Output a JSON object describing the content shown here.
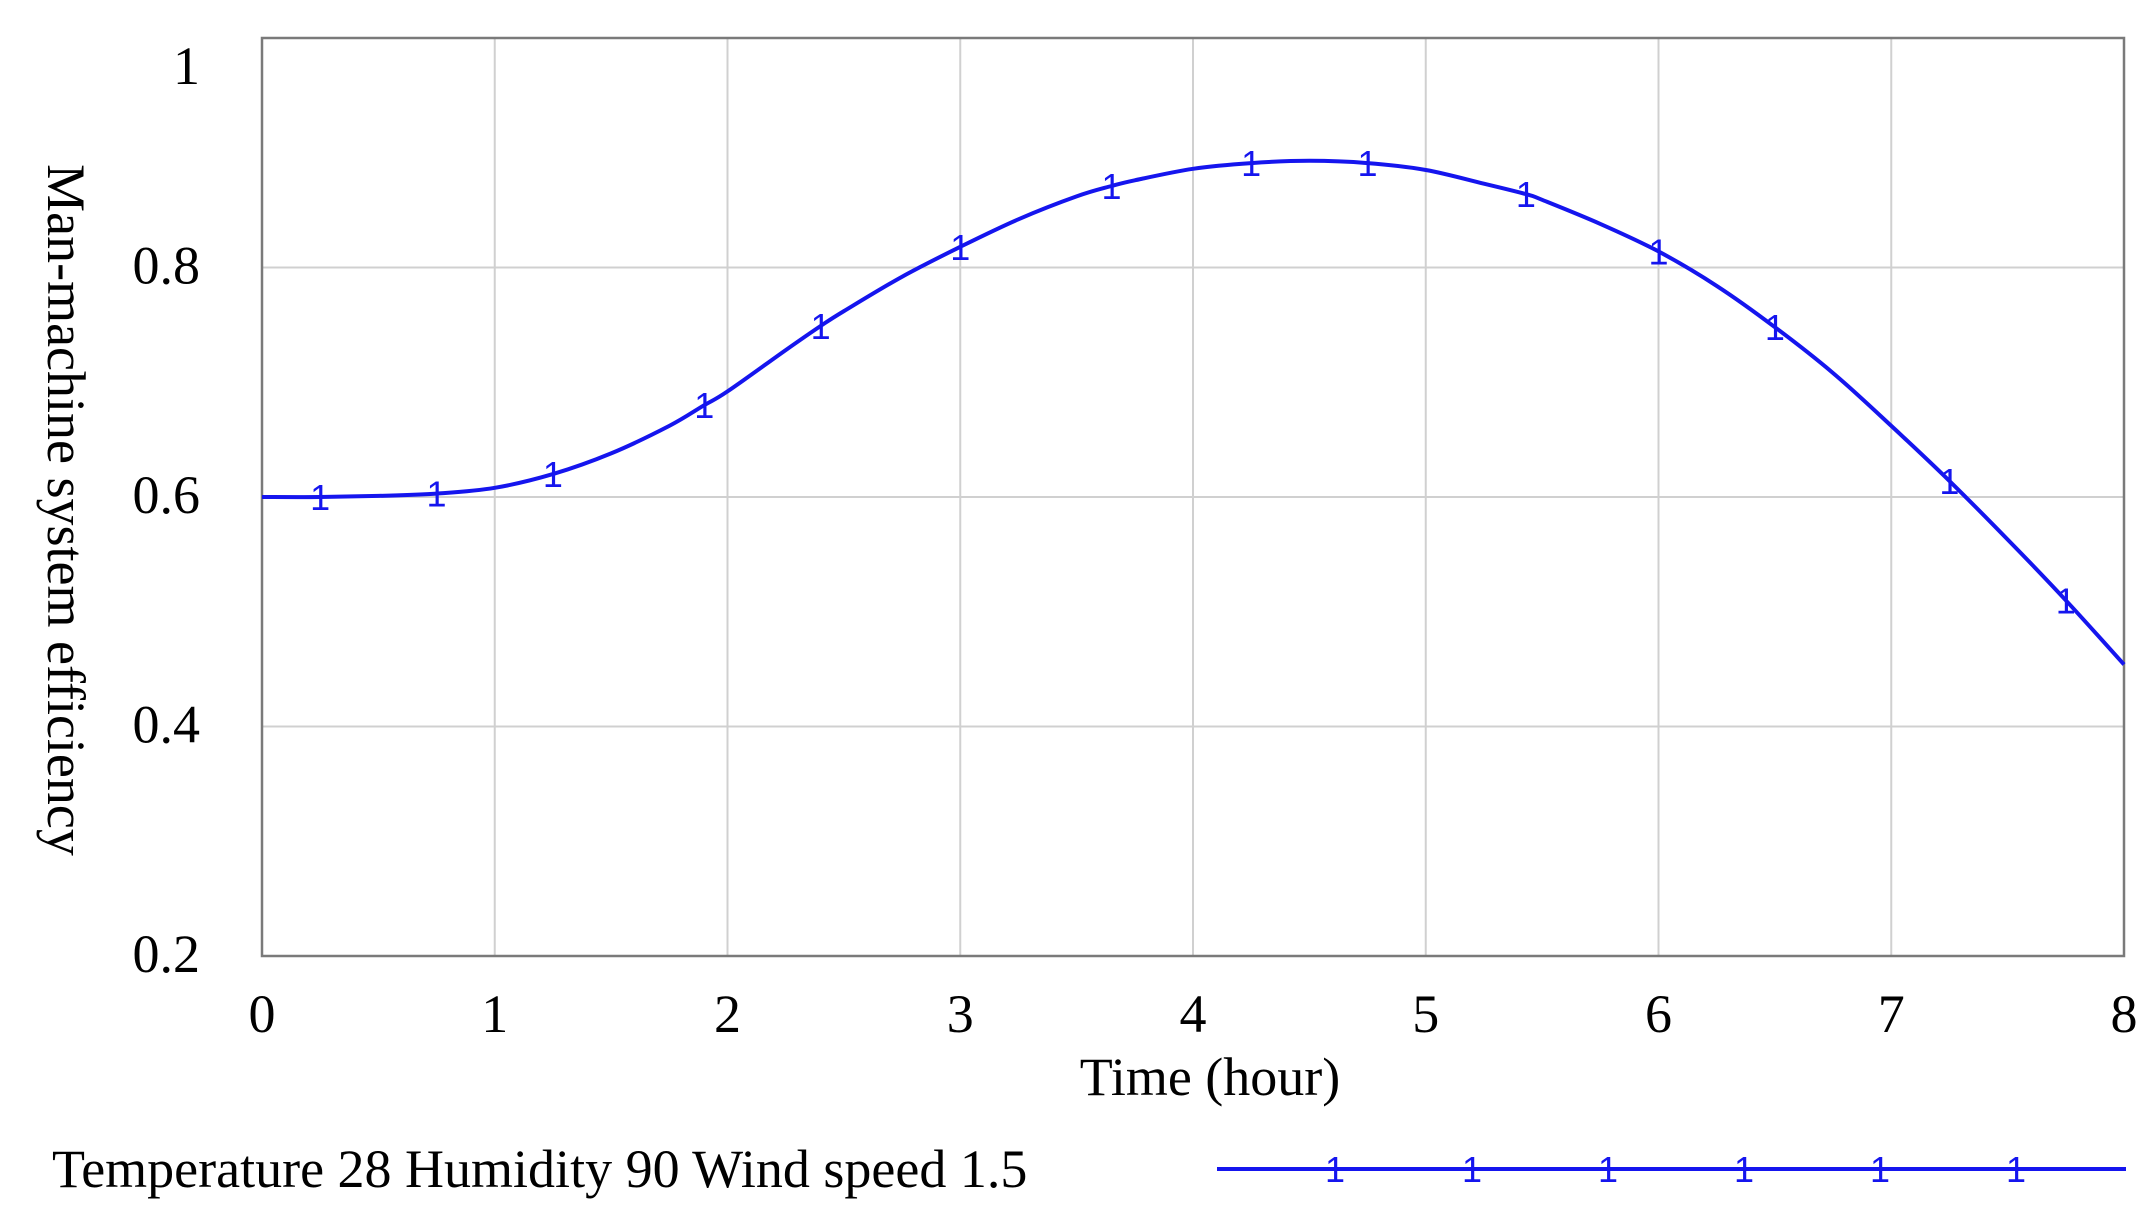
{
  "chart_data": {
    "type": "line",
    "title": "",
    "xlabel": "Time (hour)",
    "ylabel": "Man-machine system efficiency",
    "xlim": [
      0,
      8
    ],
    "ylim": [
      0.2,
      1.0
    ],
    "x_ticks": [
      "0",
      "1",
      "2",
      "3",
      "4",
      "5",
      "6",
      "7",
      "8"
    ],
    "y_ticks": [
      "0.2",
      "0.4",
      "0.6",
      "0.8",
      "1"
    ],
    "grid": true,
    "legend_position": "bottom",
    "series": [
      {
        "name": "Temperature 28 Humidity 90 Wind speed 1.5",
        "color": "#1515ee",
        "marker": "1",
        "x": [
          0,
          0.25,
          0.5,
          0.75,
          1.0,
          1.25,
          1.5,
          1.75,
          1.9,
          2.0,
          2.25,
          2.4,
          2.5,
          2.75,
          3.0,
          3.25,
          3.5,
          3.65,
          3.75,
          4.0,
          4.25,
          4.5,
          4.75,
          5.0,
          5.25,
          5.43,
          5.5,
          5.75,
          6.0,
          6.25,
          6.5,
          6.75,
          7.0,
          7.25,
          7.5,
          7.75,
          8.0
        ],
        "y": [
          0.6,
          0.6,
          0.601,
          0.603,
          0.608,
          0.62,
          0.638,
          0.662,
          0.68,
          0.692,
          0.728,
          0.749,
          0.762,
          0.792,
          0.818,
          0.842,
          0.862,
          0.871,
          0.876,
          0.886,
          0.891,
          0.893,
          0.891,
          0.885,
          0.873,
          0.864,
          0.859,
          0.838,
          0.814,
          0.784,
          0.748,
          0.708,
          0.662,
          0.614,
          0.563,
          0.51,
          0.454
        ],
        "marker_x": [
          0.25,
          0.75,
          1.25,
          1.9,
          2.4,
          3.0,
          3.65,
          4.25,
          4.75,
          5.43,
          6.0,
          6.5,
          7.25,
          7.75
        ]
      }
    ]
  }
}
